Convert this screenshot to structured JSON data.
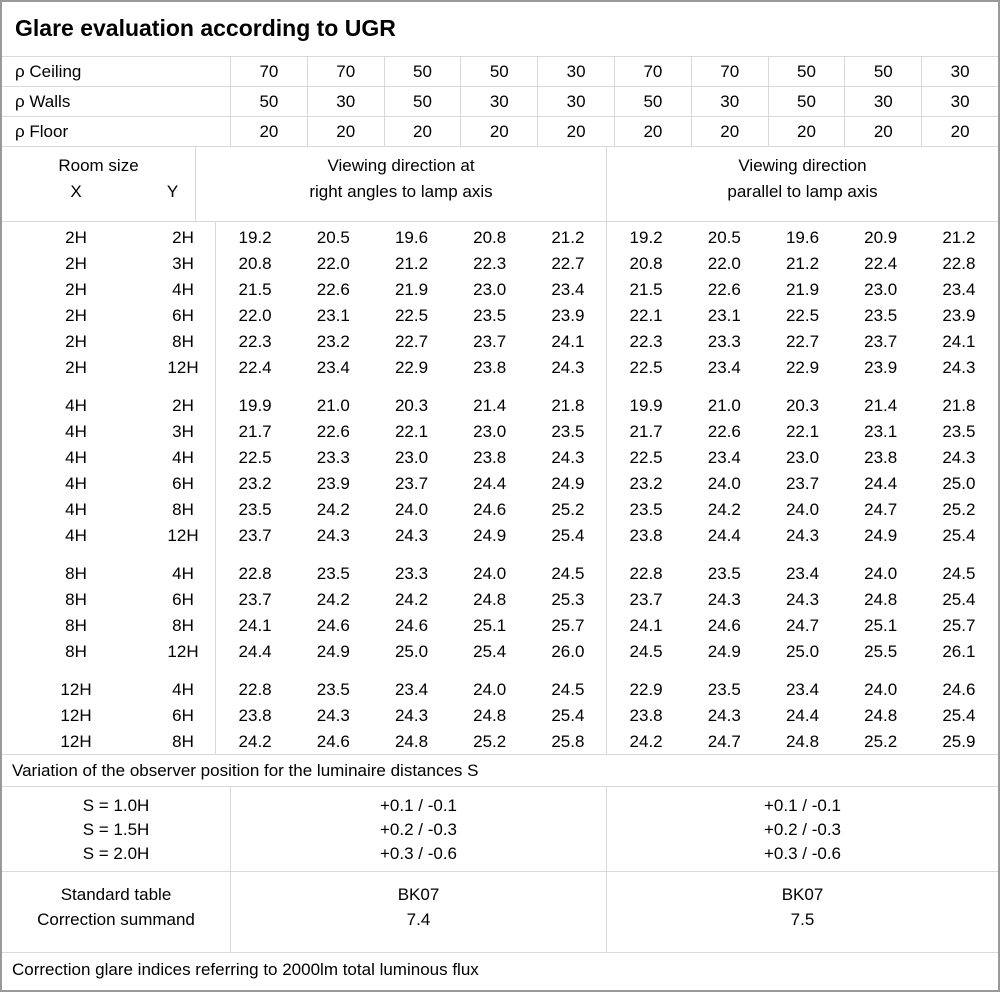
{
  "title": "Glare evaluation according to UGR",
  "colors": {
    "background": "#ffffff",
    "text": "#000000",
    "grid_line": "#d9d9d9",
    "outer_border": "#999999"
  },
  "reflectance": {
    "rows": [
      {
        "name": "rho-ceiling",
        "label": "ρ Ceiling",
        "values": [
          "70",
          "70",
          "50",
          "50",
          "30",
          "70",
          "70",
          "50",
          "50",
          "30"
        ]
      },
      {
        "name": "rho-walls",
        "label": "ρ Walls",
        "values": [
          "50",
          "30",
          "50",
          "30",
          "30",
          "50",
          "30",
          "50",
          "30",
          "30"
        ]
      },
      {
        "name": "rho-floor",
        "label": "ρ Floor",
        "values": [
          "20",
          "20",
          "20",
          "20",
          "20",
          "20",
          "20",
          "20",
          "20",
          "20"
        ]
      }
    ]
  },
  "table_header": {
    "room_size": "Room size",
    "x_label": "X",
    "y_label": "Y",
    "right_angles_line1": "Viewing direction at",
    "right_angles_line2": "right angles to lamp axis",
    "parallel_line1": "Viewing direction",
    "parallel_line2": "parallel to lamp axis"
  },
  "ugr_values": {
    "blocks": [
      {
        "rows": [
          {
            "x": "2H",
            "y": "2H",
            "right_angles": [
              "19.2",
              "20.5",
              "19.6",
              "20.8",
              "21.2"
            ],
            "parallel": [
              "19.2",
              "20.5",
              "19.6",
              "20.9",
              "21.2"
            ]
          },
          {
            "x": "2H",
            "y": "3H",
            "right_angles": [
              "20.8",
              "22.0",
              "21.2",
              "22.3",
              "22.7"
            ],
            "parallel": [
              "20.8",
              "22.0",
              "21.2",
              "22.4",
              "22.8"
            ]
          },
          {
            "x": "2H",
            "y": "4H",
            "right_angles": [
              "21.5",
              "22.6",
              "21.9",
              "23.0",
              "23.4"
            ],
            "parallel": [
              "21.5",
              "22.6",
              "21.9",
              "23.0",
              "23.4"
            ]
          },
          {
            "x": "2H",
            "y": "6H",
            "right_angles": [
              "22.0",
              "23.1",
              "22.5",
              "23.5",
              "23.9"
            ],
            "parallel": [
              "22.1",
              "23.1",
              "22.5",
              "23.5",
              "23.9"
            ]
          },
          {
            "x": "2H",
            "y": "8H",
            "right_angles": [
              "22.3",
              "23.2",
              "22.7",
              "23.7",
              "24.1"
            ],
            "parallel": [
              "22.3",
              "23.3",
              "22.7",
              "23.7",
              "24.1"
            ]
          },
          {
            "x": "2H",
            "y": "12H",
            "right_angles": [
              "22.4",
              "23.4",
              "22.9",
              "23.8",
              "24.3"
            ],
            "parallel": [
              "22.5",
              "23.4",
              "22.9",
              "23.9",
              "24.3"
            ]
          }
        ]
      },
      {
        "rows": [
          {
            "x": "4H",
            "y": "2H",
            "right_angles": [
              "19.9",
              "21.0",
              "20.3",
              "21.4",
              "21.8"
            ],
            "parallel": [
              "19.9",
              "21.0",
              "20.3",
              "21.4",
              "21.8"
            ]
          },
          {
            "x": "4H",
            "y": "3H",
            "right_angles": [
              "21.7",
              "22.6",
              "22.1",
              "23.0",
              "23.5"
            ],
            "parallel": [
              "21.7",
              "22.6",
              "22.1",
              "23.1",
              "23.5"
            ]
          },
          {
            "x": "4H",
            "y": "4H",
            "right_angles": [
              "22.5",
              "23.3",
              "23.0",
              "23.8",
              "24.3"
            ],
            "parallel": [
              "22.5",
              "23.4",
              "23.0",
              "23.8",
              "24.3"
            ]
          },
          {
            "x": "4H",
            "y": "6H",
            "right_angles": [
              "23.2",
              "23.9",
              "23.7",
              "24.4",
              "24.9"
            ],
            "parallel": [
              "23.2",
              "24.0",
              "23.7",
              "24.4",
              "25.0"
            ]
          },
          {
            "x": "4H",
            "y": "8H",
            "right_angles": [
              "23.5",
              "24.2",
              "24.0",
              "24.6",
              "25.2"
            ],
            "parallel": [
              "23.5",
              "24.2",
              "24.0",
              "24.7",
              "25.2"
            ]
          },
          {
            "x": "4H",
            "y": "12H",
            "right_angles": [
              "23.7",
              "24.3",
              "24.3",
              "24.9",
              "25.4"
            ],
            "parallel": [
              "23.8",
              "24.4",
              "24.3",
              "24.9",
              "25.4"
            ]
          }
        ]
      },
      {
        "rows": [
          {
            "x": "8H",
            "y": "4H",
            "right_angles": [
              "22.8",
              "23.5",
              "23.3",
              "24.0",
              "24.5"
            ],
            "parallel": [
              "22.8",
              "23.5",
              "23.4",
              "24.0",
              "24.5"
            ]
          },
          {
            "x": "8H",
            "y": "6H",
            "right_angles": [
              "23.7",
              "24.2",
              "24.2",
              "24.8",
              "25.3"
            ],
            "parallel": [
              "23.7",
              "24.3",
              "24.3",
              "24.8",
              "25.4"
            ]
          },
          {
            "x": "8H",
            "y": "8H",
            "right_angles": [
              "24.1",
              "24.6",
              "24.6",
              "25.1",
              "25.7"
            ],
            "parallel": [
              "24.1",
              "24.6",
              "24.7",
              "25.1",
              "25.7"
            ]
          },
          {
            "x": "8H",
            "y": "12H",
            "right_angles": [
              "24.4",
              "24.9",
              "25.0",
              "25.4",
              "26.0"
            ],
            "parallel": [
              "24.5",
              "24.9",
              "25.0",
              "25.5",
              "26.1"
            ]
          }
        ]
      },
      {
        "rows": [
          {
            "x": "12H",
            "y": "4H",
            "right_angles": [
              "22.8",
              "23.5",
              "23.4",
              "24.0",
              "24.5"
            ],
            "parallel": [
              "22.9",
              "23.5",
              "23.4",
              "24.0",
              "24.6"
            ]
          },
          {
            "x": "12H",
            "y": "6H",
            "right_angles": [
              "23.8",
              "24.3",
              "24.3",
              "24.8",
              "25.4"
            ],
            "parallel": [
              "23.8",
              "24.3",
              "24.4",
              "24.8",
              "25.4"
            ]
          },
          {
            "x": "12H",
            "y": "8H",
            "right_angles": [
              "24.2",
              "24.6",
              "24.8",
              "25.2",
              "25.8"
            ],
            "parallel": [
              "24.2",
              "24.7",
              "24.8",
              "25.2",
              "25.9"
            ]
          }
        ]
      }
    ]
  },
  "variation": {
    "note": "Variation of the observer position for the luminaire distances S",
    "rows": [
      {
        "label": "S = 1.0H",
        "right_angles": "+0.1 / -0.1",
        "parallel": "+0.1 / -0.1"
      },
      {
        "label": "S = 1.5H",
        "right_angles": "+0.2 / -0.3",
        "parallel": "+0.2 / -0.3"
      },
      {
        "label": "S = 2.0H",
        "right_angles": "+0.3 / -0.6",
        "parallel": "+0.3 / -0.6"
      }
    ]
  },
  "summary": {
    "standard_table_label": "Standard table",
    "correction_summand_label": "Correction summand",
    "right_angles": {
      "standard_table": "BK07",
      "correction_summand": "7.4"
    },
    "parallel": {
      "standard_table": "BK07",
      "correction_summand": "7.5"
    }
  },
  "footer_note": "Correction glare indices referring to 2000lm total luminous flux"
}
